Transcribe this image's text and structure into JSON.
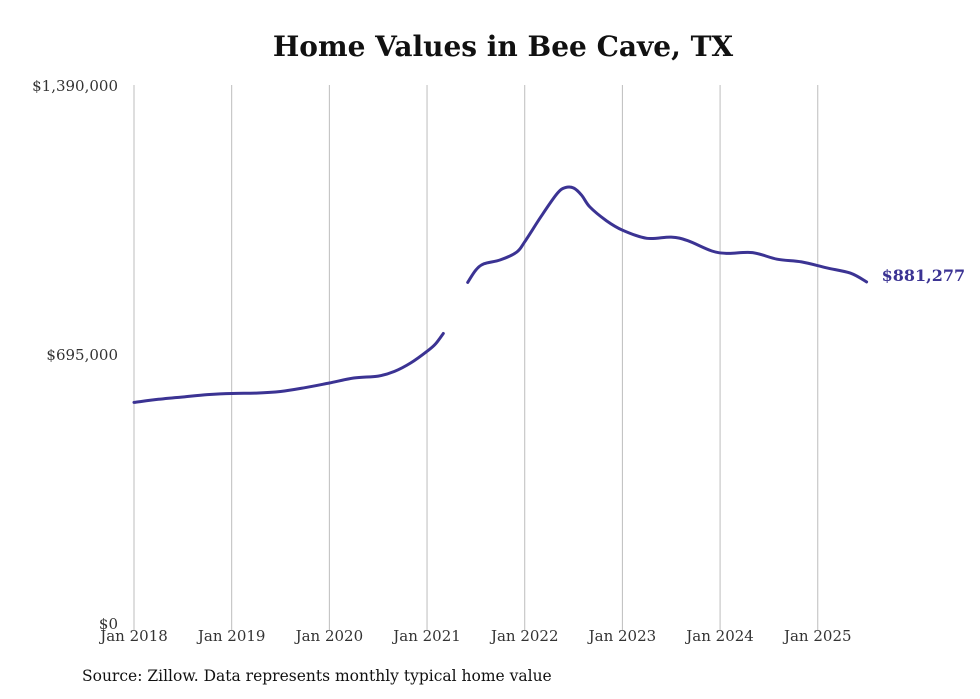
{
  "chart_data": {
    "type": "line",
    "title": "Home Values in Bee Cave, TX",
    "source_note": "Source: Zillow. Data represents monthly typical home value",
    "series_color": "#3b3393",
    "end_value_label": "$881,277",
    "ylim": [
      0,
      1390000
    ],
    "y_ticks": [
      {
        "value": 0,
        "label": "$0"
      },
      {
        "value": 695000,
        "label": "$695,000"
      },
      {
        "value": 1390000,
        "label": "$1,390,000"
      }
    ],
    "x_ticks": [
      {
        "date": "2018-01",
        "label": "Jan 2018"
      },
      {
        "date": "2019-01",
        "label": "Jan 2019"
      },
      {
        "date": "2020-01",
        "label": "Jan 2020"
      },
      {
        "date": "2021-01",
        "label": "Jan 2021"
      },
      {
        "date": "2022-01",
        "label": "Jan 2022"
      },
      {
        "date": "2023-01",
        "label": "Jan 2023"
      },
      {
        "date": "2024-01",
        "label": "Jan 2024"
      },
      {
        "date": "2025-01",
        "label": "Jan 2025"
      }
    ],
    "grid": {
      "vertical": true,
      "horizontal": false
    },
    "series": [
      {
        "segments": [
          [
            {
              "date": "2018-01",
              "value": 570000
            },
            {
              "date": "2018-04",
              "value": 578000
            },
            {
              "date": "2018-07",
              "value": 584000
            },
            {
              "date": "2018-10",
              "value": 590000
            },
            {
              "date": "2019-01",
              "value": 593000
            },
            {
              "date": "2019-04",
              "value": 594000
            },
            {
              "date": "2019-07",
              "value": 598000
            },
            {
              "date": "2019-10",
              "value": 608000
            },
            {
              "date": "2020-01",
              "value": 620000
            },
            {
              "date": "2020-04",
              "value": 633000
            },
            {
              "date": "2020-07",
              "value": 638000
            },
            {
              "date": "2020-09",
              "value": 650000
            },
            {
              "date": "2020-11",
              "value": 672000
            },
            {
              "date": "2021-01",
              "value": 702000
            },
            {
              "date": "2021-02",
              "value": 720000
            },
            {
              "date": "2021-03",
              "value": 748000
            }
          ],
          [
            {
              "date": "2021-06",
              "value": 880000
            },
            {
              "date": "2021-07",
              "value": 912000
            },
            {
              "date": "2021-08",
              "value": 928000
            },
            {
              "date": "2021-10",
              "value": 938000
            },
            {
              "date": "2021-12",
              "value": 958000
            },
            {
              "date": "2022-01",
              "value": 985000
            },
            {
              "date": "2022-03",
              "value": 1050000
            },
            {
              "date": "2022-05",
              "value": 1110000
            },
            {
              "date": "2022-06",
              "value": 1125000
            },
            {
              "date": "2022-07",
              "value": 1124000
            },
            {
              "date": "2022-08",
              "value": 1105000
            },
            {
              "date": "2022-09",
              "value": 1075000
            },
            {
              "date": "2022-11",
              "value": 1040000
            },
            {
              "date": "2023-01",
              "value": 1015000
            },
            {
              "date": "2023-04",
              "value": 994000
            },
            {
              "date": "2023-07",
              "value": 997000
            },
            {
              "date": "2023-09",
              "value": 988000
            },
            {
              "date": "2023-12",
              "value": 961000
            },
            {
              "date": "2024-02",
              "value": 955000
            },
            {
              "date": "2024-05",
              "value": 957000
            },
            {
              "date": "2024-08",
              "value": 940000
            },
            {
              "date": "2024-11",
              "value": 933000
            },
            {
              "date": "2025-02",
              "value": 918000
            },
            {
              "date": "2025-05",
              "value": 904000
            },
            {
              "date": "2025-07",
              "value": 881277
            }
          ]
        ]
      }
    ]
  }
}
